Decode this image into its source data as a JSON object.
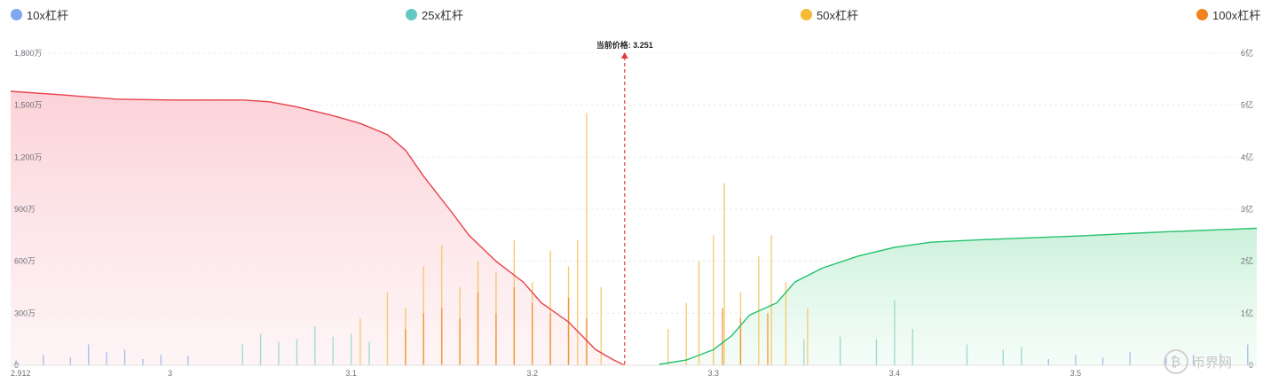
{
  "chart_data": {
    "type": "area",
    "legend": [
      {
        "label": "10x杠杆",
        "color": "#7ea7ef"
      },
      {
        "label": "25x杠杆",
        "color": "#63c8c2"
      },
      {
        "label": "50x杠杆",
        "color": "#f5b934"
      },
      {
        "label": "100x杠杆",
        "color": "#f2841f"
      }
    ],
    "legend_position": "top",
    "x_range": [
      2.912,
      3.6
    ],
    "x_ticks": [
      "2.912",
      "3",
      "3.1",
      "3.2",
      "3.3",
      "3.4",
      "3.5"
    ],
    "x_tick_values": [
      2.912,
      3.0,
      3.1,
      3.2,
      3.3,
      3.4,
      3.5
    ],
    "y_left_range": [
      0,
      1800
    ],
    "y_left_ticks": [
      "0",
      "300万",
      "600万",
      "900万",
      "1,200万",
      "1,500万",
      "1,800万"
    ],
    "y_right_range": [
      0,
      6
    ],
    "y_right_ticks": [
      "0",
      "1亿",
      "2亿",
      "3亿",
      "4亿",
      "5亿",
      "6亿"
    ],
    "grid": true,
    "current_price": {
      "label": "当前价格: 3.251",
      "value": 3.251,
      "color": "#e23a3a"
    },
    "series": [
      {
        "kind": "cumulative_long",
        "color": "#e8414b",
        "fill": "#fcd9de",
        "points": [
          [
            2.912,
            1580
          ],
          [
            2.94,
            1560
          ],
          [
            2.97,
            1535
          ],
          [
            3.0,
            1530
          ],
          [
            3.04,
            1530
          ],
          [
            3.055,
            1520
          ],
          [
            3.07,
            1490
          ],
          [
            3.09,
            1440
          ],
          [
            3.105,
            1395
          ],
          [
            3.12,
            1330
          ],
          [
            3.13,
            1240
          ],
          [
            3.14,
            1090
          ],
          [
            3.155,
            890
          ],
          [
            3.165,
            750
          ],
          [
            3.18,
            600
          ],
          [
            3.195,
            480
          ],
          [
            3.205,
            360
          ],
          [
            3.22,
            250
          ],
          [
            3.235,
            90
          ],
          [
            3.245,
            30
          ],
          [
            3.251,
            0
          ]
        ]
      },
      {
        "kind": "cumulative_short",
        "color": "#23c16b",
        "fill": "#d3f3e1",
        "points": [
          [
            3.27,
            5
          ],
          [
            3.285,
            30
          ],
          [
            3.3,
            90
          ],
          [
            3.31,
            170
          ],
          [
            3.32,
            290
          ],
          [
            3.335,
            360
          ],
          [
            3.345,
            480
          ],
          [
            3.36,
            560
          ],
          [
            3.38,
            630
          ],
          [
            3.4,
            680
          ],
          [
            3.42,
            710
          ],
          [
            3.45,
            725
          ],
          [
            3.5,
            745
          ],
          [
            3.55,
            770
          ],
          [
            3.6,
            790
          ]
        ]
      }
    ],
    "bars": {
      "unit_axis": "right",
      "series": [
        {
          "name": "10x杠杆",
          "color": "#9bb6ea",
          "values": [
            [
              2.915,
              0.1
            ],
            [
              2.93,
              0.2
            ],
            [
              2.945,
              0.15
            ],
            [
              2.955,
              0.4
            ],
            [
              2.965,
              0.25
            ],
            [
              2.975,
              0.3
            ],
            [
              2.985,
              0.12
            ],
            [
              2.995,
              0.2
            ],
            [
              3.01,
              0.18
            ],
            [
              3.485,
              0.12
            ],
            [
              3.5,
              0.2
            ],
            [
              3.515,
              0.15
            ],
            [
              3.53,
              0.25
            ],
            [
              3.55,
              0.18
            ],
            [
              3.565,
              0.2
            ],
            [
              3.58,
              0.22
            ],
            [
              3.595,
              0.4
            ]
          ]
        },
        {
          "name": "25x杠杆",
          "color": "#8fd6cc",
          "values": [
            [
              3.04,
              0.4
            ],
            [
              3.05,
              0.6
            ],
            [
              3.06,
              0.45
            ],
            [
              3.07,
              0.5
            ],
            [
              3.08,
              0.75
            ],
            [
              3.09,
              0.55
            ],
            [
              3.1,
              0.6
            ],
            [
              3.11,
              0.45
            ],
            [
              3.35,
              0.5
            ],
            [
              3.37,
              0.55
            ],
            [
              3.39,
              0.5
            ],
            [
              3.41,
              0.7
            ],
            [
              3.44,
              0.4
            ],
            [
              3.46,
              0.3
            ],
            [
              3.47,
              0.35
            ],
            [
              3.4,
              1.25
            ]
          ]
        },
        {
          "name": "50x杠杆",
          "color": "#f6c25a",
          "values": [
            [
              3.105,
              0.9
            ],
            [
              3.12,
              1.4
            ],
            [
              3.13,
              1.1
            ],
            [
              3.14,
              1.9
            ],
            [
              3.15,
              2.3
            ],
            [
              3.16,
              1.5
            ],
            [
              3.17,
              2.0
            ],
            [
              3.18,
              1.8
            ],
            [
              3.19,
              2.4
            ],
            [
              3.2,
              1.6
            ],
            [
              3.21,
              2.2
            ],
            [
              3.22,
              1.9
            ],
            [
              3.225,
              2.4
            ],
            [
              3.23,
              4.85
            ],
            [
              3.238,
              1.5
            ],
            [
              3.275,
              0.7
            ],
            [
              3.285,
              1.2
            ],
            [
              3.292,
              2.0
            ],
            [
              3.3,
              2.5
            ],
            [
              3.306,
              3.5
            ],
            [
              3.315,
              1.4
            ],
            [
              3.325,
              2.1
            ],
            [
              3.332,
              2.5
            ],
            [
              3.34,
              1.6
            ],
            [
              3.352,
              1.1
            ]
          ]
        },
        {
          "name": "100x杠杆",
          "color": "#f08c2a",
          "values": [
            [
              3.13,
              0.7
            ],
            [
              3.14,
              1.0
            ],
            [
              3.15,
              1.1
            ],
            [
              3.16,
              0.9
            ],
            [
              3.17,
              1.4
            ],
            [
              3.18,
              1.0
            ],
            [
              3.19,
              1.5
            ],
            [
              3.2,
              1.2
            ],
            [
              3.21,
              1.0
            ],
            [
              3.22,
              1.3
            ],
            [
              3.23,
              0.9
            ],
            [
              3.305,
              1.1
            ],
            [
              3.315,
              0.9
            ],
            [
              3.33,
              1.0
            ]
          ]
        }
      ]
    }
  }
}
